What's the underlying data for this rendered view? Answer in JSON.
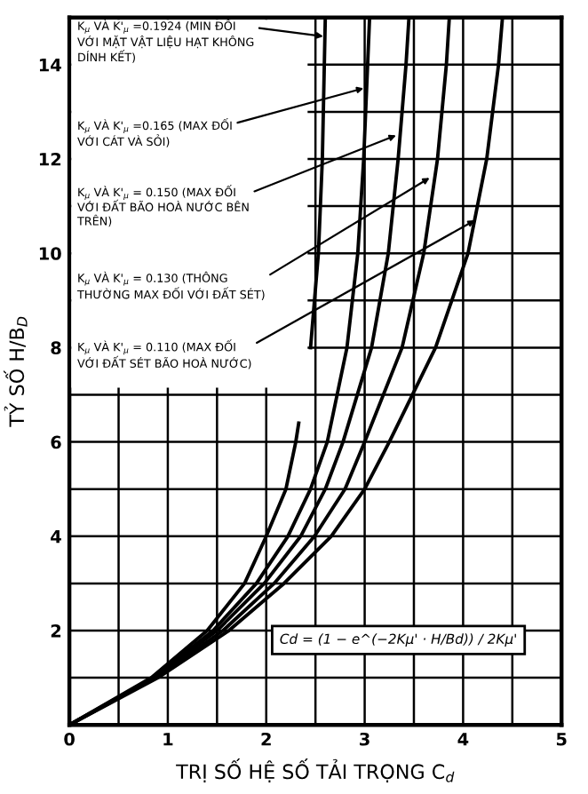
{
  "chart_data": {
    "type": "line",
    "xlabel": "TRỊ SỐ HỆ SỐ TẢI TRỌNG C$_{d}$",
    "ylabel": "TỶ SỐ H/B$_{D}$",
    "xlim": [
      0,
      5
    ],
    "ylim": [
      0,
      15
    ],
    "xticks": [
      0,
      {
        "value": 0.5,
        "label": null
      },
      1,
      {
        "value": 1.5,
        "label": null
      },
      2,
      {
        "value": 2.5,
        "label": null
      },
      3,
      {
        "value": 3.5,
        "label": null
      },
      4,
      {
        "value": 4.5,
        "label": null
      },
      5
    ],
    "yticks": [
      {
        "value": 1,
        "label": null
      },
      2,
      {
        "value": 3,
        "label": null
      },
      4,
      {
        "value": 5,
        "label": null
      },
      6,
      {
        "value": 7,
        "label": null
      },
      8,
      {
        "value": 9,
        "label": null
      },
      10,
      {
        "value": 11,
        "label": null
      },
      12,
      {
        "value": 13,
        "label": null
      },
      14
    ],
    "grid": true,
    "legend": false,
    "marker": "none",
    "line_style": "solid",
    "series": [
      {
        "color": "#000000",
        "x": [
          0,
          0.83,
          1.4,
          1.78,
          2.0,
          2.2,
          2.3,
          2.33,
          null,
          2.45,
          2.53,
          2.57,
          2.59,
          2.6
        ],
        "values": [
          0,
          1,
          2,
          3,
          4,
          5,
          6,
          6.4,
          null,
          8,
          10,
          12,
          14,
          15
        ]
      },
      {
        "color": "#000000",
        "x": [
          0,
          0.85,
          1.46,
          1.9,
          2.22,
          2.45,
          2.62,
          2.82,
          2.93,
          2.99,
          3.03,
          3.05
        ],
        "values": [
          0,
          1,
          2,
          3,
          4,
          5,
          6,
          8,
          10,
          12,
          14,
          15
        ]
      },
      {
        "color": "#000000",
        "x": [
          0,
          0.86,
          1.5,
          1.98,
          2.35,
          2.6,
          2.78,
          3.07,
          3.24,
          3.34,
          3.42,
          3.45
        ],
        "values": [
          0,
          1,
          2,
          3,
          4,
          5,
          6,
          8,
          10,
          12,
          14,
          15
        ]
      },
      {
        "color": "#000000",
        "x": [
          0,
          0.88,
          1.56,
          2.08,
          2.49,
          2.8,
          3.0,
          3.38,
          3.6,
          3.74,
          3.83,
          3.86
        ],
        "values": [
          0,
          1,
          2,
          3,
          4,
          5,
          6,
          8,
          10,
          12,
          14,
          15
        ]
      },
      {
        "color": "#000000",
        "x": [
          0,
          0.9,
          1.62,
          2.18,
          2.66,
          3.0,
          3.25,
          3.72,
          4.05,
          4.24,
          4.36,
          4.4
        ],
        "values": [
          0,
          1,
          2,
          3,
          4,
          5,
          6,
          8,
          10,
          12,
          14,
          15
        ]
      }
    ],
    "annotations": [
      {
        "text": "K$_{μ}$ VÀ K'$_{μ}$ =0.1924 (MIN ĐỐI\nVỚI MẶT VẬT LIỆU HẠT KHÔNG\nDÍNH KẾT)",
        "x": 2.58,
        "y": 14.6
      },
      {
        "text": "K$_{μ}$ VÀ K'$_{μ}$ =0.165 (MAX ĐỐI\nVỚI CÁT VÀ SỎI)",
        "x": 2.99,
        "y": 13.5
      },
      {
        "text": "K$_{μ}$ VÀ K'$_{μ}$ = 0.150 (MAX ĐỐI\nVỚI ĐẤT BÃO HOÀ NƯỚC BÊN\nTRÊN)",
        "x": 3.32,
        "y": 12.5
      },
      {
        "text": "K$_{μ}$ VÀ K'$_{μ}$ = 0.130 (THÔNG\nTHƯỜNG MAX ĐỐI VỚI ĐẤT SÉT)",
        "x": 3.66,
        "y": 11.6
      },
      {
        "text": "K$_{μ}$ VÀ K'$_{μ}$ = 0.110 (MAX ĐỐI\nVỚI ĐẤT SÉT BÃO HOÀ NƯỚC)",
        "x": 4.12,
        "y": 10.7
      },
      "Cd = (1 − e^(−2Kμ' · H/Bd)) / 2Kμ'"
    ]
  }
}
